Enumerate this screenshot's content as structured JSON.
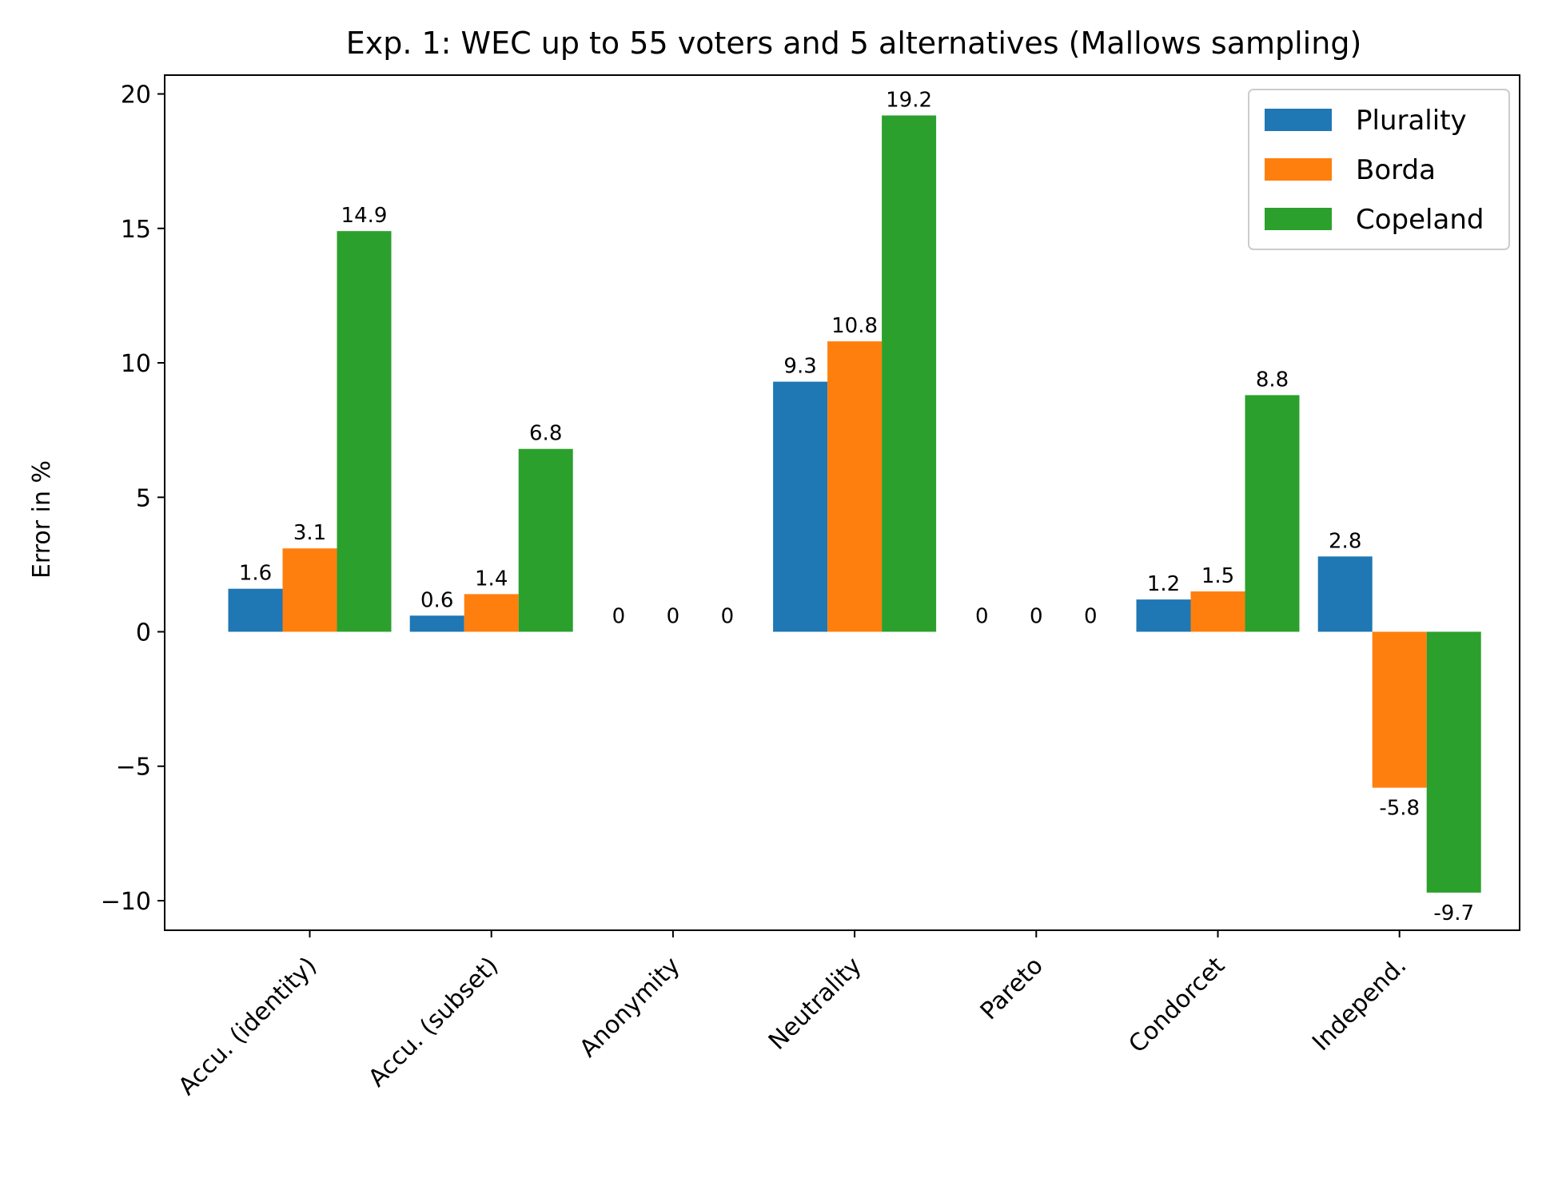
{
  "chart_data": {
    "type": "bar",
    "title": "Exp. 1: WEC up to 55 voters and 5 alternatives (Mallows sampling)",
    "xlabel": "",
    "ylabel": "Error in %",
    "ylim": [
      -11.1,
      20.7
    ],
    "yticks": [
      -10,
      -5,
      0,
      5,
      10,
      15,
      20
    ],
    "ytick_labels": [
      "−10",
      "−5",
      "0",
      "5",
      "10",
      "15",
      "20"
    ],
    "categories": [
      "Accu. (identity)",
      "Accu. (subset)",
      "Anonymity",
      "Neutrality",
      "Pareto",
      "Condorcet",
      "Independ."
    ],
    "series": [
      {
        "name": "Plurality",
        "color": "#1f77b4",
        "values": [
          1.6,
          0.6,
          0,
          9.3,
          0,
          1.2,
          2.8
        ],
        "labels": [
          "1.6",
          "0.6",
          "0",
          "9.3",
          "0",
          "1.2",
          "2.8"
        ]
      },
      {
        "name": "Borda",
        "color": "#ff7f0e",
        "values": [
          3.1,
          1.4,
          0,
          10.8,
          0,
          1.5,
          -5.8
        ],
        "labels": [
          "3.1",
          "1.4",
          "0",
          "10.8",
          "0",
          "1.5",
          "-5.8"
        ]
      },
      {
        "name": "Copeland",
        "color": "#2ca02c",
        "values": [
          14.9,
          6.8,
          0,
          19.2,
          0,
          8.8,
          -9.7
        ],
        "labels": [
          "14.9",
          "6.8",
          "0",
          "19.2",
          "0",
          "8.8",
          "-9.7"
        ]
      }
    ],
    "legend_position": "top-right",
    "grid": false
  }
}
